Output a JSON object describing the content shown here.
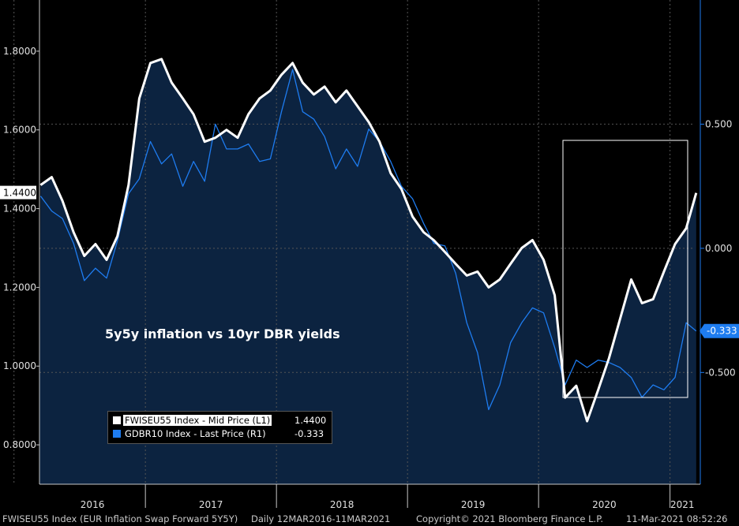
{
  "annotation": "5y5y inflation vs 10yr DBR yields",
  "chart_data": {
    "type": "line",
    "left_axis": {
      "ticks": [
        "0.8000",
        "1.0000",
        "1.2000",
        "1.4000",
        "1.6000",
        "1.8000"
      ],
      "ylim": [
        0.7,
        1.93
      ]
    },
    "right_axis": {
      "ticks": [
        "-0.500",
        "0.000",
        "0.500"
      ],
      "ylim": [
        -0.95,
        1.0
      ]
    },
    "x_ticks": [
      "2016",
      "2017",
      "2018",
      "2019",
      "2020",
      "2021"
    ],
    "x_range": [
      "2016-03-12",
      "2021-03-11"
    ],
    "series": [
      {
        "name": "FWISEU55 Index - Mid Price (L1)",
        "axis": "left",
        "color": "#ffffff",
        "last_label": "1.4400",
        "x": [
          "2016-03",
          "2016-04",
          "2016-05",
          "2016-06",
          "2016-07",
          "2016-08",
          "2016-09",
          "2016-10",
          "2016-11",
          "2016-12",
          "2017-01",
          "2017-02",
          "2017-03",
          "2017-04",
          "2017-05",
          "2017-06",
          "2017-07",
          "2017-08",
          "2017-09",
          "2017-10",
          "2017-11",
          "2017-12",
          "2018-01",
          "2018-02",
          "2018-03",
          "2018-04",
          "2018-05",
          "2018-06",
          "2018-07",
          "2018-08",
          "2018-09",
          "2018-10",
          "2018-11",
          "2018-12",
          "2019-01",
          "2019-02",
          "2019-03",
          "2019-04",
          "2019-05",
          "2019-06",
          "2019-07",
          "2019-08",
          "2019-09",
          "2019-10",
          "2019-11",
          "2019-12",
          "2020-01",
          "2020-02",
          "2020-03",
          "2020-04",
          "2020-05",
          "2020-06",
          "2020-07",
          "2020-08",
          "2020-09",
          "2020-10",
          "2020-11",
          "2020-12",
          "2021-01",
          "2021-02",
          "2021-03"
        ],
        "values": [
          1.46,
          1.48,
          1.42,
          1.34,
          1.28,
          1.31,
          1.27,
          1.33,
          1.46,
          1.68,
          1.77,
          1.78,
          1.72,
          1.68,
          1.64,
          1.57,
          1.58,
          1.6,
          1.58,
          1.64,
          1.68,
          1.7,
          1.74,
          1.77,
          1.72,
          1.69,
          1.71,
          1.67,
          1.7,
          1.66,
          1.62,
          1.57,
          1.49,
          1.45,
          1.38,
          1.34,
          1.32,
          1.29,
          1.26,
          1.23,
          1.24,
          1.2,
          1.22,
          1.26,
          1.3,
          1.32,
          1.27,
          1.18,
          0.92,
          0.95,
          0.86,
          0.94,
          1.02,
          1.12,
          1.22,
          1.16,
          1.17,
          1.24,
          1.31,
          1.35,
          1.44
        ]
      },
      {
        "name": "GDBR10 Index - Last Price (R1)",
        "axis": "right",
        "color": "#1e7cf0",
        "last_label": "-0.333",
        "x": [
          "2016-03",
          "2016-04",
          "2016-05",
          "2016-06",
          "2016-07",
          "2016-08",
          "2016-09",
          "2016-10",
          "2016-11",
          "2016-12",
          "2017-01",
          "2017-02",
          "2017-03",
          "2017-04",
          "2017-05",
          "2017-06",
          "2017-07",
          "2017-08",
          "2017-09",
          "2017-10",
          "2017-11",
          "2017-12",
          "2018-01",
          "2018-02",
          "2018-03",
          "2018-04",
          "2018-05",
          "2018-06",
          "2018-07",
          "2018-08",
          "2018-09",
          "2018-10",
          "2018-11",
          "2018-12",
          "2019-01",
          "2019-02",
          "2019-03",
          "2019-04",
          "2019-05",
          "2019-06",
          "2019-07",
          "2019-08",
          "2019-09",
          "2019-10",
          "2019-11",
          "2019-12",
          "2020-01",
          "2020-02",
          "2020-03",
          "2020-04",
          "2020-05",
          "2020-06",
          "2020-07",
          "2020-08",
          "2020-09",
          "2020-10",
          "2020-11",
          "2020-12",
          "2021-01",
          "2021-02",
          "2021-03"
        ],
        "values": [
          0.21,
          0.15,
          0.12,
          0.02,
          -0.13,
          -0.08,
          -0.12,
          0.03,
          0.22,
          0.28,
          0.43,
          0.34,
          0.38,
          0.25,
          0.35,
          0.27,
          0.5,
          0.4,
          0.4,
          0.42,
          0.35,
          0.36,
          0.55,
          0.72,
          0.55,
          0.52,
          0.45,
          0.32,
          0.4,
          0.33,
          0.48,
          0.43,
          0.35,
          0.25,
          0.2,
          0.1,
          0.02,
          0.01,
          -0.1,
          -0.3,
          -0.42,
          -0.65,
          -0.55,
          -0.38,
          -0.3,
          -0.24,
          -0.26,
          -0.4,
          -0.55,
          -0.45,
          -0.48,
          -0.45,
          -0.46,
          -0.48,
          -0.52,
          -0.6,
          -0.55,
          -0.57,
          -0.52,
          -0.3,
          -0.333
        ]
      }
    ]
  },
  "footer": {
    "ticker": "FWISEU55 Index (EUR Inflation Swap Forward 5Y5Y)",
    "period": "Daily 12MAR2016-11MAR2021",
    "copyright": "Copyright© 2021 Bloomberg Finance L.P.",
    "timestamp": "11-Mar-2021 08:52:26"
  }
}
